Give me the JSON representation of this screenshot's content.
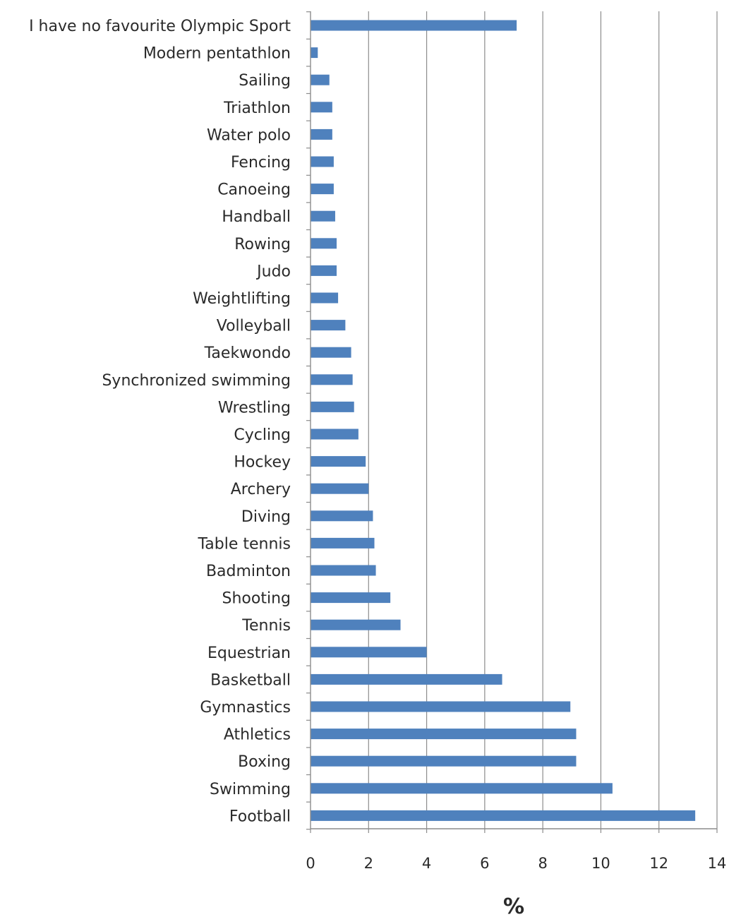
{
  "chart_data": {
    "type": "bar",
    "orientation": "horizontal",
    "title": "",
    "xlabel": "%",
    "ylabel": "",
    "xlim": [
      0,
      14
    ],
    "xticks": [
      0,
      2,
      4,
      6,
      8,
      10,
      12,
      14
    ],
    "grid": "vertical-major",
    "legend": "none",
    "bar_color": "#4F81BD",
    "grid_color": "#8C8C8C",
    "categories": [
      "I have no favourite Olympic Sport",
      "Modern pentathlon",
      "Sailing",
      "Triathlon",
      "Water polo",
      "Fencing",
      "Canoeing",
      "Handball",
      "Rowing",
      "Judo",
      "Weightlifting",
      "Volleyball",
      "Taekwondo",
      "Synchronized swimming",
      "Wrestling",
      "Cycling",
      "Hockey",
      "Archery",
      "Diving",
      "Table tennis",
      "Badminton",
      "Shooting",
      "Tennis",
      "Equestrian",
      "Basketball",
      "Gymnastics",
      "Athletics",
      "Boxing",
      "Swimming",
      "Football"
    ],
    "values": [
      7.1,
      0.25,
      0.65,
      0.75,
      0.75,
      0.8,
      0.8,
      0.85,
      0.9,
      0.9,
      0.95,
      1.2,
      1.4,
      1.45,
      1.5,
      1.65,
      1.9,
      2.0,
      2.15,
      2.2,
      2.25,
      2.75,
      3.1,
      4.0,
      6.6,
      8.95,
      9.15,
      9.15,
      10.4,
      13.25
    ]
  }
}
